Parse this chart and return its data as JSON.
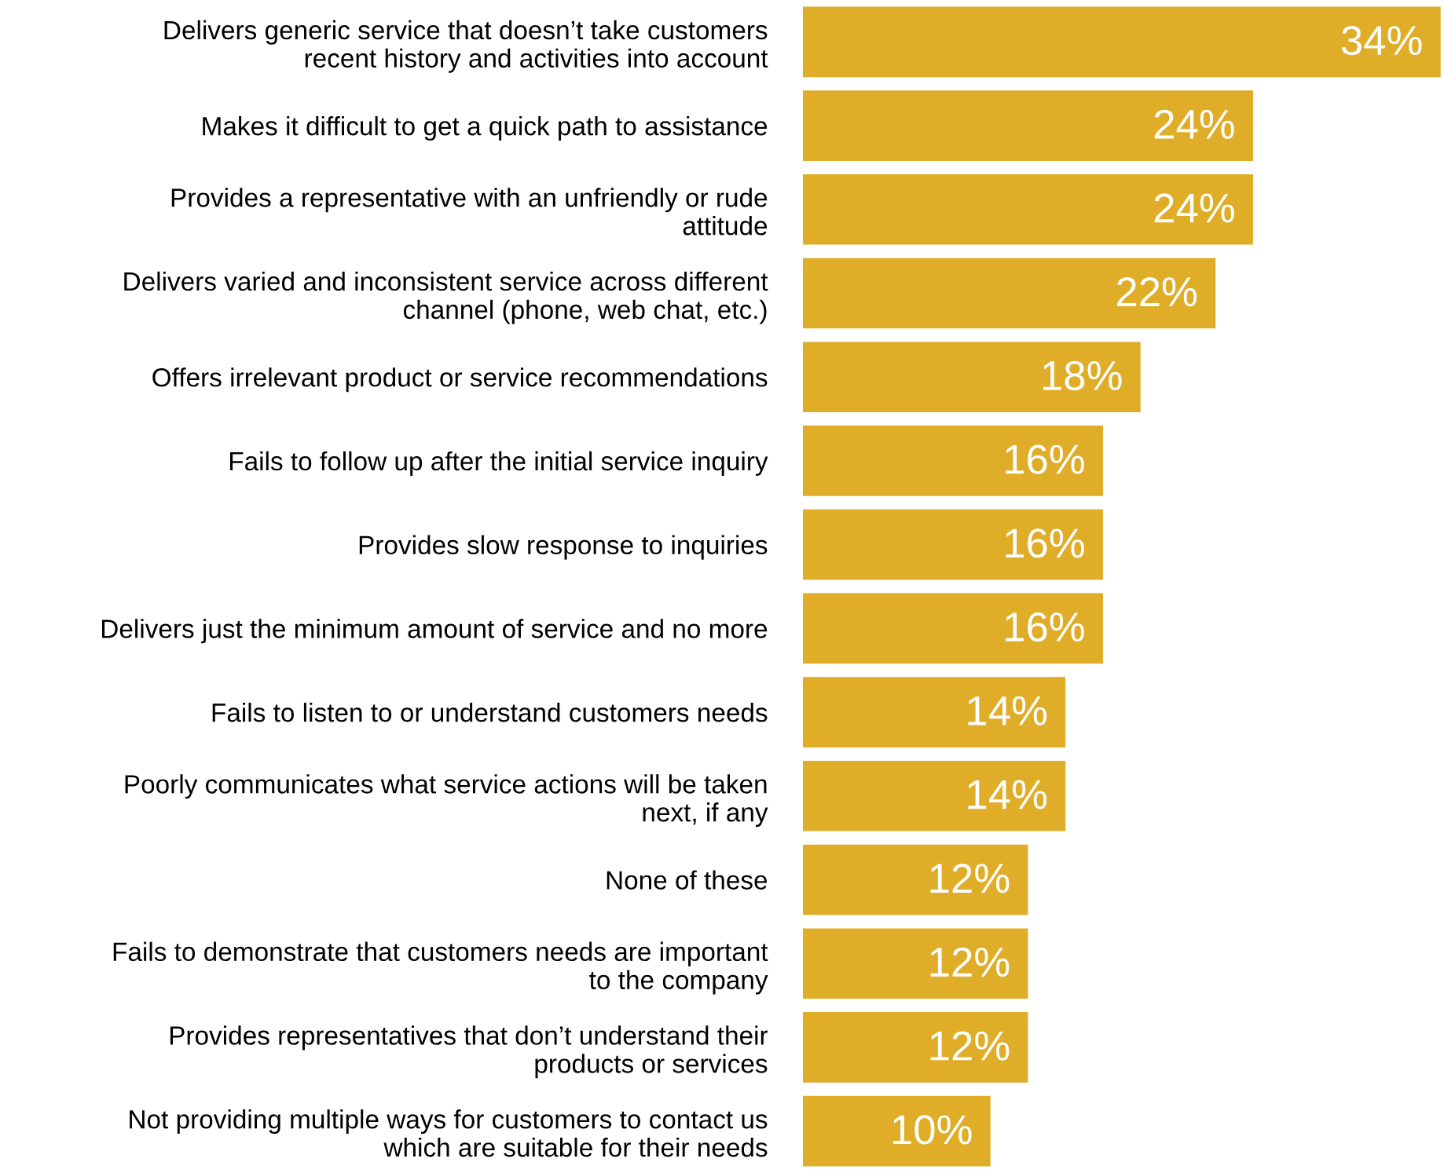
{
  "chart_data": {
    "type": "bar",
    "orientation": "horizontal",
    "categories": [
      "Delivers generic service that doesn’t take customers\nrecent history and activities into account",
      "Makes it difficult to get a quick path to assistance",
      "Provides a representative with an unfriendly or rude\nattitude",
      "Delivers varied and inconsistent service across different\nchannel (phone, web chat, etc.)",
      "Offers irrelevant product or service recommendations",
      "Fails to follow up after the initial service inquiry",
      "Provides slow response to inquiries",
      "Delivers just the minimum amount of service and no more",
      "Fails to listen to or understand customers needs",
      "Poorly communicates what service actions will be taken\nnext, if any",
      "None of these",
      "Fails to demonstrate that customers needs are important\nto the company",
      "Provides representatives that don’t understand their\nproducts or services",
      "Not providing multiple ways for customers to contact us\nwhich are suitable for their needs"
    ],
    "values": [
      34,
      24,
      24,
      22,
      18,
      16,
      16,
      16,
      14,
      14,
      12,
      12,
      12,
      10
    ],
    "value_labels": [
      "34%",
      "24%",
      "24%",
      "22%",
      "18%",
      "16%",
      "16%",
      "16%",
      "14%",
      "14%",
      "12%",
      "12%",
      "12%",
      "10%"
    ],
    "color": "#dfad27",
    "grid": false,
    "legend": false
  }
}
